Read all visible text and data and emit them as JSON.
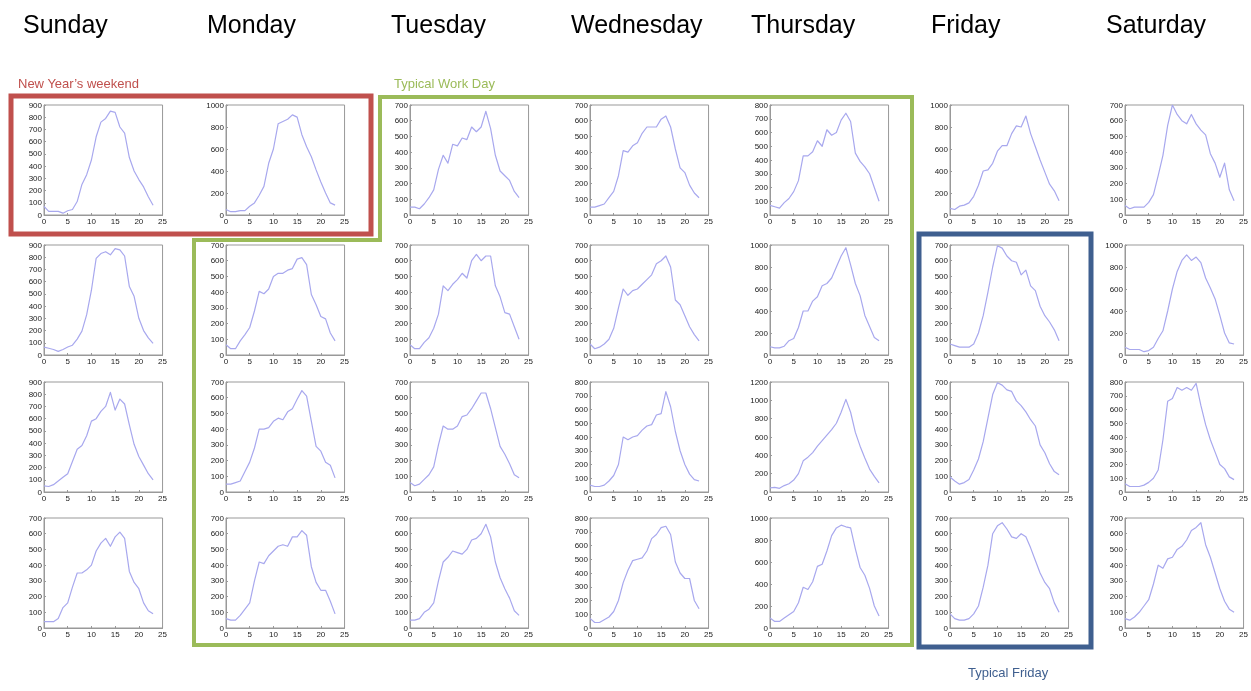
{
  "chart_data": [
    {
      "type": "line",
      "title": "Sunday",
      "annotations": [
        "New Year’s weekend"
      ],
      "x": [
        0,
        1,
        2,
        3,
        4,
        5,
        6,
        7,
        8,
        9,
        10,
        11,
        12,
        13,
        14,
        15,
        16,
        17,
        18,
        19,
        20,
        21,
        22,
        23
      ],
      "values": [
        70,
        30,
        30,
        30,
        15,
        35,
        45,
        110,
        250,
        330,
        450,
        640,
        760,
        790,
        850,
        840,
        720,
        670,
        470,
        360,
        290,
        230,
        150,
        80
      ],
      "color": "#a8a8ee",
      "xlim": [
        0,
        25
      ],
      "xticks": [
        0,
        5,
        10,
        15,
        20,
        25
      ],
      "ylim": [
        0,
        900
      ],
      "yticks": [
        0,
        100,
        200,
        300,
        400,
        500,
        600,
        700,
        800,
        900
      ]
    },
    {
      "type": "line",
      "title": "Monday",
      "x": [
        0,
        1,
        2,
        3,
        4,
        5,
        6,
        7,
        8,
        9,
        10,
        11,
        12,
        13,
        14,
        15,
        16,
        17,
        18,
        19,
        20,
        21,
        22,
        23
      ],
      "values": [
        50,
        30,
        30,
        40,
        40,
        80,
        110,
        180,
        260,
        470,
        600,
        830,
        850,
        870,
        910,
        890,
        730,
        620,
        530,
        410,
        300,
        200,
        110,
        90
      ],
      "color": "#a8a8ee",
      "xlim": [
        0,
        25
      ],
      "xticks": [
        0,
        5,
        10,
        15,
        20,
        25
      ],
      "ylim": [
        0,
        1000
      ],
      "yticks": [
        0,
        200,
        400,
        600,
        800,
        1000
      ]
    },
    {
      "type": "line",
      "title": "Tuesday",
      "annotations": [
        "Typical Work Day"
      ],
      "x": [
        0,
        1,
        2,
        3,
        4,
        5,
        6,
        7,
        8,
        9,
        10,
        11,
        12,
        13,
        14,
        15,
        16,
        17,
        18,
        19,
        20,
        21,
        22,
        23
      ],
      "values": [
        50,
        50,
        40,
        70,
        110,
        160,
        290,
        380,
        330,
        450,
        440,
        490,
        480,
        560,
        530,
        560,
        660,
        550,
        380,
        280,
        250,
        220,
        150,
        110
      ],
      "color": "#a8a8ee",
      "xlim": [
        0,
        25
      ],
      "xticks": [
        0,
        5,
        10,
        15,
        20,
        25
      ],
      "ylim": [
        0,
        700
      ],
      "yticks": [
        0,
        100,
        200,
        300,
        400,
        500,
        600,
        700
      ]
    },
    {
      "type": "line",
      "title": "Wednesday",
      "x": [
        0,
        1,
        2,
        3,
        4,
        5,
        6,
        7,
        8,
        9,
        10,
        11,
        12,
        13,
        14,
        15,
        16,
        17,
        18,
        19,
        20,
        21,
        22,
        23
      ],
      "values": [
        50,
        50,
        60,
        70,
        110,
        150,
        250,
        410,
        400,
        440,
        460,
        520,
        560,
        560,
        560,
        610,
        630,
        560,
        420,
        300,
        270,
        190,
        140,
        110
      ],
      "color": "#a8a8ee",
      "xlim": [
        0,
        25
      ],
      "xticks": [
        0,
        5,
        10,
        15,
        20,
        25
      ],
      "ylim": [
        0,
        700
      ],
      "yticks": [
        0,
        100,
        200,
        300,
        400,
        500,
        600,
        700
      ]
    },
    {
      "type": "line",
      "title": "Thursday",
      "x": [
        0,
        1,
        2,
        3,
        4,
        5,
        6,
        7,
        8,
        9,
        10,
        11,
        12,
        13,
        14,
        15,
        16,
        17,
        18,
        19,
        20,
        21,
        22,
        23
      ],
      "values": [
        70,
        60,
        50,
        90,
        120,
        170,
        250,
        430,
        430,
        460,
        540,
        500,
        620,
        580,
        600,
        690,
        740,
        680,
        450,
        390,
        350,
        300,
        200,
        100
      ],
      "color": "#a8a8ee",
      "xlim": [
        0,
        25
      ],
      "xticks": [
        0,
        5,
        10,
        15,
        20,
        25
      ],
      "ylim": [
        0,
        800
      ],
      "yticks": [
        0,
        100,
        200,
        300,
        400,
        500,
        600,
        700,
        800
      ]
    },
    {
      "type": "line",
      "title": "Friday",
      "x": [
        0,
        1,
        2,
        3,
        4,
        5,
        6,
        7,
        8,
        9,
        10,
        11,
        12,
        13,
        14,
        15,
        16,
        17,
        18,
        19,
        20,
        21,
        22,
        23
      ],
      "values": [
        60,
        50,
        80,
        90,
        110,
        170,
        270,
        400,
        410,
        470,
        580,
        630,
        630,
        740,
        810,
        800,
        900,
        740,
        620,
        500,
        390,
        280,
        220,
        130
      ],
      "color": "#a8a8ee",
      "xlim": [
        0,
        25
      ],
      "xticks": [
        0,
        5,
        10,
        15,
        20,
        25
      ],
      "ylim": [
        0,
        1000
      ],
      "yticks": [
        0,
        200,
        400,
        600,
        800,
        1000
      ]
    },
    {
      "type": "line",
      "title": "Saturday",
      "x": [
        0,
        1,
        2,
        3,
        4,
        5,
        6,
        7,
        8,
        9,
        10,
        11,
        12,
        13,
        14,
        15,
        16,
        17,
        18,
        19,
        20,
        21,
        22,
        23
      ],
      "values": [
        60,
        40,
        50,
        50,
        50,
        80,
        130,
        250,
        380,
        570,
        700,
        640,
        600,
        580,
        640,
        580,
        540,
        510,
        390,
        330,
        240,
        330,
        160,
        90
      ],
      "color": "#a8a8ee",
      "xlim": [
        0,
        25
      ],
      "xticks": [
        0,
        5,
        10,
        15,
        20,
        25
      ],
      "ylim": [
        0,
        700
      ],
      "yticks": [
        0,
        100,
        200,
        300,
        400,
        500,
        600,
        700
      ]
    },
    {
      "type": "line",
      "x": [
        0,
        1,
        2,
        3,
        4,
        5,
        6,
        7,
        8,
        9,
        10,
        11,
        12,
        13,
        14,
        15,
        16,
        17,
        18,
        19,
        20,
        21,
        22,
        23
      ],
      "values": [
        65,
        55,
        45,
        30,
        45,
        65,
        80,
        130,
        195,
        330,
        530,
        790,
        830,
        845,
        820,
        870,
        860,
        810,
        560,
        480,
        300,
        200,
        140,
        95
      ],
      "color": "#a8a8ee",
      "xlim": [
        0,
        25
      ],
      "xticks": [
        0,
        5,
        10,
        15,
        20,
        25
      ],
      "ylim": [
        0,
        900
      ],
      "yticks": [
        0,
        100,
        200,
        300,
        400,
        500,
        600,
        700,
        800,
        900
      ]
    },
    {
      "type": "line",
      "x": [
        0,
        1,
        2,
        3,
        4,
        5,
        6,
        7,
        8,
        9,
        10,
        11,
        12,
        13,
        14,
        15,
        16,
        17,
        18,
        19,
        20,
        21,
        22,
        23
      ],
      "values": [
        65,
        40,
        40,
        90,
        130,
        175,
        280,
        405,
        390,
        420,
        500,
        520,
        520,
        540,
        550,
        610,
        620,
        575,
        385,
        320,
        245,
        230,
        140,
        90
      ],
      "color": "#a8a8ee",
      "xlim": [
        0,
        25
      ],
      "xticks": [
        0,
        5,
        10,
        15,
        20,
        25
      ],
      "ylim": [
        0,
        700
      ],
      "yticks": [
        0,
        100,
        200,
        300,
        400,
        500,
        600,
        700
      ]
    },
    {
      "type": "line",
      "x": [
        0,
        1,
        2,
        3,
        4,
        5,
        6,
        7,
        8,
        9,
        10,
        11,
        12,
        13,
        14,
        15,
        16,
        17,
        18,
        19,
        20,
        21,
        22,
        23
      ],
      "values": [
        65,
        40,
        40,
        80,
        110,
        170,
        260,
        440,
        410,
        450,
        480,
        520,
        490,
        600,
        640,
        600,
        630,
        630,
        440,
        370,
        270,
        260,
        180,
        100
      ],
      "color": "#a8a8ee",
      "xlim": [
        0,
        25
      ],
      "xticks": [
        0,
        5,
        10,
        15,
        20,
        25
      ],
      "ylim": [
        0,
        700
      ],
      "yticks": [
        0,
        100,
        200,
        300,
        400,
        500,
        600,
        700
      ]
    },
    {
      "type": "line",
      "x": [
        0,
        1,
        2,
        3,
        4,
        5,
        6,
        7,
        8,
        9,
        10,
        11,
        12,
        13,
        14,
        15,
        16,
        17,
        18,
        19,
        20,
        21,
        22,
        23
      ],
      "values": [
        70,
        40,
        50,
        70,
        100,
        170,
        300,
        420,
        380,
        410,
        420,
        450,
        480,
        510,
        580,
        600,
        630,
        560,
        350,
        320,
        250,
        180,
        130,
        90
      ],
      "color": "#a8a8ee",
      "xlim": [
        0,
        25
      ],
      "xticks": [
        0,
        5,
        10,
        15,
        20,
        25
      ],
      "ylim": [
        0,
        700
      ],
      "yticks": [
        0,
        100,
        200,
        300,
        400,
        500,
        600,
        700
      ]
    },
    {
      "type": "line",
      "x": [
        0,
        1,
        2,
        3,
        4,
        5,
        6,
        7,
        8,
        9,
        10,
        11,
        12,
        13,
        14,
        15,
        16,
        17,
        18,
        19,
        20,
        21,
        22,
        23
      ],
      "values": [
        75,
        65,
        65,
        80,
        130,
        150,
        250,
        400,
        400,
        490,
        530,
        630,
        650,
        700,
        800,
        900,
        975,
        820,
        650,
        540,
        360,
        260,
        160,
        130
      ],
      "color": "#a8a8ee",
      "xlim": [
        0,
        25
      ],
      "xticks": [
        0,
        5,
        10,
        15,
        20,
        25
      ],
      "ylim": [
        0,
        1000
      ],
      "yticks": [
        0,
        200,
        400,
        600,
        800,
        1000
      ]
    },
    {
      "type": "line",
      "x": [
        0,
        1,
        2,
        3,
        4,
        5,
        6,
        7,
        8,
        9,
        10,
        11,
        12,
        13,
        14,
        15,
        16,
        17,
        18,
        19,
        20,
        21,
        22,
        23
      ],
      "values": [
        70,
        60,
        50,
        50,
        50,
        70,
        140,
        250,
        400,
        560,
        695,
        680,
        630,
        600,
        590,
        510,
        540,
        440,
        410,
        310,
        250,
        210,
        160,
        90
      ],
      "color": "#a8a8ee",
      "xlim": [
        0,
        25
      ],
      "xticks": [
        0,
        5,
        10,
        15,
        20,
        25
      ],
      "ylim": [
        0,
        700
      ],
      "yticks": [
        0,
        100,
        200,
        300,
        400,
        500,
        600,
        700
      ]
    },
    {
      "type": "line",
      "x": [
        0,
        1,
        2,
        3,
        4,
        5,
        6,
        7,
        8,
        9,
        10,
        11,
        12,
        13,
        14,
        15,
        16,
        17,
        18,
        19,
        20,
        21,
        22,
        23
      ],
      "values": [
        70,
        50,
        50,
        50,
        30,
        40,
        70,
        150,
        220,
        400,
        600,
        760,
        860,
        910,
        860,
        890,
        840,
        700,
        610,
        510,
        360,
        200,
        110,
        100
      ],
      "color": "#a8a8ee",
      "xlim": [
        0,
        25
      ],
      "xticks": [
        0,
        5,
        10,
        15,
        20,
        25
      ],
      "ylim": [
        0,
        1000
      ],
      "yticks": [
        0,
        200,
        400,
        600,
        800,
        1000
      ]
    },
    {
      "type": "line",
      "x": [
        0,
        1,
        2,
        3,
        4,
        5,
        6,
        7,
        8,
        9,
        10,
        11,
        12,
        13,
        14,
        15,
        16,
        17,
        18,
        19,
        20,
        21,
        22,
        23
      ],
      "values": [
        50,
        45,
        60,
        90,
        120,
        150,
        250,
        350,
        380,
        460,
        580,
        600,
        660,
        700,
        815,
        670,
        760,
        720,
        550,
        390,
        290,
        220,
        150,
        100
      ],
      "color": "#a8a8ee",
      "xlim": [
        0,
        25
      ],
      "xticks": [
        0,
        5,
        10,
        15,
        20,
        25
      ],
      "ylim": [
        0,
        900
      ],
      "yticks": [
        0,
        100,
        200,
        300,
        400,
        500,
        600,
        700,
        800,
        900
      ]
    },
    {
      "type": "line",
      "x": [
        0,
        1,
        2,
        3,
        4,
        5,
        6,
        7,
        8,
        9,
        10,
        11,
        12,
        13,
        14,
        15,
        16,
        17,
        18,
        19,
        20,
        21,
        22,
        23
      ],
      "values": [
        50,
        50,
        60,
        70,
        130,
        190,
        280,
        400,
        400,
        410,
        450,
        470,
        460,
        510,
        530,
        590,
        645,
        610,
        450,
        290,
        260,
        190,
        170,
        90
      ],
      "color": "#a8a8ee",
      "xlim": [
        0,
        25
      ],
      "xticks": [
        0,
        5,
        10,
        15,
        20,
        25
      ],
      "ylim": [
        0,
        700
      ],
      "yticks": [
        0,
        100,
        200,
        300,
        400,
        500,
        600,
        700
      ]
    },
    {
      "type": "line",
      "x": [
        0,
        1,
        2,
        3,
        4,
        5,
        6,
        7,
        8,
        9,
        10,
        11,
        12,
        13,
        14,
        15,
        16,
        17,
        18,
        19,
        20,
        21,
        22,
        23
      ],
      "values": [
        60,
        40,
        50,
        80,
        110,
        160,
        300,
        420,
        400,
        400,
        420,
        480,
        490,
        530,
        580,
        630,
        630,
        530,
        410,
        290,
        240,
        180,
        110,
        90
      ],
      "color": "#a8a8ee",
      "xlim": [
        0,
        25
      ],
      "xticks": [
        0,
        5,
        10,
        15,
        20,
        25
      ],
      "ylim": [
        0,
        700
      ],
      "yticks": [
        0,
        100,
        200,
        300,
        400,
        500,
        600,
        700
      ]
    },
    {
      "type": "line",
      "x": [
        0,
        1,
        2,
        3,
        4,
        5,
        6,
        7,
        8,
        9,
        10,
        11,
        12,
        13,
        14,
        15,
        16,
        17,
        18,
        19,
        20,
        21,
        22,
        23
      ],
      "values": [
        50,
        40,
        40,
        50,
        80,
        120,
        200,
        400,
        380,
        400,
        410,
        450,
        480,
        490,
        560,
        570,
        730,
        620,
        440,
        300,
        200,
        130,
        90,
        80
      ],
      "color": "#a8a8ee",
      "xlim": [
        0,
        25
      ],
      "xticks": [
        0,
        5,
        10,
        15,
        20,
        25
      ],
      "ylim": [
        0,
        800
      ],
      "yticks": [
        0,
        100,
        200,
        300,
        400,
        500,
        600,
        700,
        800
      ]
    },
    {
      "type": "line",
      "x": [
        0,
        1,
        2,
        3,
        4,
        5,
        6,
        7,
        8,
        9,
        10,
        11,
        12,
        13,
        14,
        15,
        16,
        17,
        18,
        19,
        20,
        21,
        22,
        23
      ],
      "values": [
        45,
        50,
        40,
        70,
        90,
        130,
        200,
        340,
        380,
        430,
        500,
        560,
        620,
        680,
        750,
        870,
        1010,
        870,
        650,
        500,
        370,
        250,
        170,
        100
      ],
      "color": "#a8a8ee",
      "xlim": [
        0,
        25
      ],
      "xticks": [
        0,
        5,
        10,
        15,
        20,
        25
      ],
      "ylim": [
        0,
        1200
      ],
      "yticks": [
        0,
        200,
        400,
        600,
        800,
        1000,
        1200
      ]
    },
    {
      "type": "line",
      "x": [
        0,
        1,
        2,
        3,
        4,
        5,
        6,
        7,
        8,
        9,
        10,
        11,
        12,
        13,
        14,
        15,
        16,
        17,
        18,
        19,
        20,
        21,
        22,
        23
      ],
      "values": [
        95,
        70,
        50,
        60,
        80,
        140,
        210,
        320,
        470,
        620,
        695,
        680,
        650,
        640,
        580,
        550,
        510,
        460,
        420,
        300,
        250,
        180,
        130,
        110
      ],
      "color": "#a8a8ee",
      "xlim": [
        0,
        25
      ],
      "xticks": [
        0,
        5,
        10,
        15,
        20,
        25
      ],
      "ylim": [
        0,
        700
      ],
      "yticks": [
        0,
        100,
        200,
        300,
        400,
        500,
        600,
        700
      ]
    },
    {
      "type": "line",
      "x": [
        0,
        1,
        2,
        3,
        4,
        5,
        6,
        7,
        8,
        9,
        10,
        11,
        12,
        13,
        14,
        15,
        16,
        17,
        18,
        19,
        20,
        21,
        22,
        23
      ],
      "values": [
        60,
        40,
        40,
        40,
        50,
        70,
        100,
        160,
        380,
        660,
        680,
        760,
        740,
        760,
        740,
        790,
        630,
        490,
        380,
        290,
        200,
        170,
        110,
        90
      ],
      "color": "#a8a8ee",
      "xlim": [
        0,
        25
      ],
      "xticks": [
        0,
        5,
        10,
        15,
        20,
        25
      ],
      "ylim": [
        0,
        800
      ],
      "yticks": [
        0,
        100,
        200,
        300,
        400,
        500,
        600,
        700,
        800
      ]
    },
    {
      "type": "line",
      "x": [
        0,
        1,
        2,
        3,
        4,
        5,
        6,
        7,
        8,
        9,
        10,
        11,
        12,
        13,
        14,
        15,
        16,
        17,
        18,
        19,
        20,
        21,
        22,
        23
      ],
      "values": [
        40,
        40,
        40,
        60,
        130,
        160,
        260,
        350,
        350,
        370,
        400,
        490,
        540,
        570,
        520,
        580,
        610,
        570,
        360,
        290,
        250,
        160,
        110,
        90
      ],
      "color": "#a8a8ee",
      "xlim": [
        0,
        25
      ],
      "xticks": [
        0,
        5,
        10,
        15,
        20,
        25
      ],
      "ylim": [
        0,
        700
      ],
      "yticks": [
        0,
        100,
        200,
        300,
        400,
        500,
        600,
        700
      ]
    },
    {
      "type": "line",
      "x": [
        0,
        1,
        2,
        3,
        4,
        5,
        6,
        7,
        8,
        9,
        10,
        11,
        12,
        13,
        14,
        15,
        16,
        17,
        18,
        19,
        20,
        21,
        22,
        23
      ],
      "values": [
        60,
        50,
        50,
        80,
        120,
        160,
        300,
        420,
        410,
        460,
        490,
        520,
        530,
        520,
        580,
        580,
        620,
        590,
        390,
        290,
        240,
        240,
        170,
        90
      ],
      "color": "#a8a8ee",
      "xlim": [
        0,
        25
      ],
      "xticks": [
        0,
        5,
        10,
        15,
        20,
        25
      ],
      "ylim": [
        0,
        700
      ],
      "yticks": [
        0,
        100,
        200,
        300,
        400,
        500,
        600,
        700
      ]
    },
    {
      "type": "line",
      "x": [
        0,
        1,
        2,
        3,
        4,
        5,
        6,
        7,
        8,
        9,
        10,
        11,
        12,
        13,
        14,
        15,
        16,
        17,
        18,
        19,
        20,
        21,
        22,
        23
      ],
      "values": [
        50,
        50,
        60,
        100,
        120,
        160,
        300,
        420,
        450,
        490,
        480,
        470,
        500,
        560,
        570,
        600,
        660,
        580,
        420,
        320,
        250,
        190,
        110,
        80
      ],
      "color": "#a8a8ee",
      "xlim": [
        0,
        25
      ],
      "xticks": [
        0,
        5,
        10,
        15,
        20,
        25
      ],
      "ylim": [
        0,
        700
      ],
      "yticks": [
        0,
        100,
        200,
        300,
        400,
        500,
        600,
        700
      ]
    },
    {
      "type": "line",
      "x": [
        0,
        1,
        2,
        3,
        4,
        5,
        6,
        7,
        8,
        9,
        10,
        11,
        12,
        13,
        14,
        15,
        16,
        17,
        18,
        19,
        20,
        21,
        22,
        23
      ],
      "values": [
        70,
        40,
        40,
        60,
        80,
        120,
        200,
        330,
        420,
        490,
        500,
        510,
        560,
        650,
        680,
        730,
        740,
        680,
        480,
        400,
        360,
        360,
        200,
        140
      ],
      "color": "#a8a8ee",
      "xlim": [
        0,
        25
      ],
      "xticks": [
        0,
        5,
        10,
        15,
        20,
        25
      ],
      "ylim": [
        0,
        800
      ],
      "yticks": [
        0,
        100,
        200,
        300,
        400,
        500,
        600,
        700,
        800
      ]
    },
    {
      "type": "line",
      "x": [
        0,
        1,
        2,
        3,
        4,
        5,
        6,
        7,
        8,
        9,
        10,
        11,
        12,
        13,
        14,
        15,
        16,
        17,
        18,
        19,
        20,
        21,
        22,
        23
      ],
      "values": [
        90,
        60,
        60,
        90,
        120,
        150,
        230,
        370,
        350,
        420,
        560,
        580,
        700,
        840,
        910,
        935,
        920,
        910,
        720,
        550,
        480,
        360,
        200,
        110
      ],
      "color": "#a8a8ee",
      "xlim": [
        0,
        25
      ],
      "xticks": [
        0,
        5,
        10,
        15,
        20,
        25
      ],
      "ylim": [
        0,
        1000
      ],
      "yticks": [
        0,
        200,
        400,
        600,
        800,
        1000
      ]
    },
    {
      "type": "line",
      "annotations": [
        "Typical Friday"
      ],
      "x": [
        0,
        1,
        2,
        3,
        4,
        5,
        6,
        7,
        8,
        9,
        10,
        11,
        12,
        13,
        14,
        15,
        16,
        17,
        18,
        19,
        20,
        21,
        22,
        23
      ],
      "values": [
        90,
        60,
        50,
        50,
        60,
        90,
        140,
        260,
        400,
        600,
        650,
        670,
        630,
        580,
        570,
        600,
        580,
        510,
        430,
        350,
        290,
        250,
        160,
        100
      ],
      "color": "#a8a8ee",
      "xlim": [
        0,
        25
      ],
      "xticks": [
        0,
        5,
        10,
        15,
        20,
        25
      ],
      "ylim": [
        0,
        700
      ],
      "yticks": [
        0,
        100,
        200,
        300,
        400,
        500,
        600,
        700
      ]
    },
    {
      "type": "line",
      "x": [
        0,
        1,
        2,
        3,
        4,
        5,
        6,
        7,
        8,
        9,
        10,
        11,
        12,
        13,
        14,
        15,
        16,
        17,
        18,
        19,
        20,
        21,
        22,
        23
      ],
      "values": [
        60,
        50,
        70,
        100,
        140,
        180,
        280,
        400,
        380,
        440,
        450,
        500,
        520,
        560,
        620,
        640,
        670,
        530,
        450,
        350,
        250,
        170,
        120,
        100
      ],
      "color": "#a8a8ee",
      "xlim": [
        0,
        25
      ],
      "xticks": [
        0,
        5,
        10,
        15,
        20,
        25
      ],
      "ylim": [
        0,
        700
      ],
      "yticks": [
        0,
        100,
        200,
        300,
        400,
        500,
        600,
        700
      ]
    }
  ]
}
